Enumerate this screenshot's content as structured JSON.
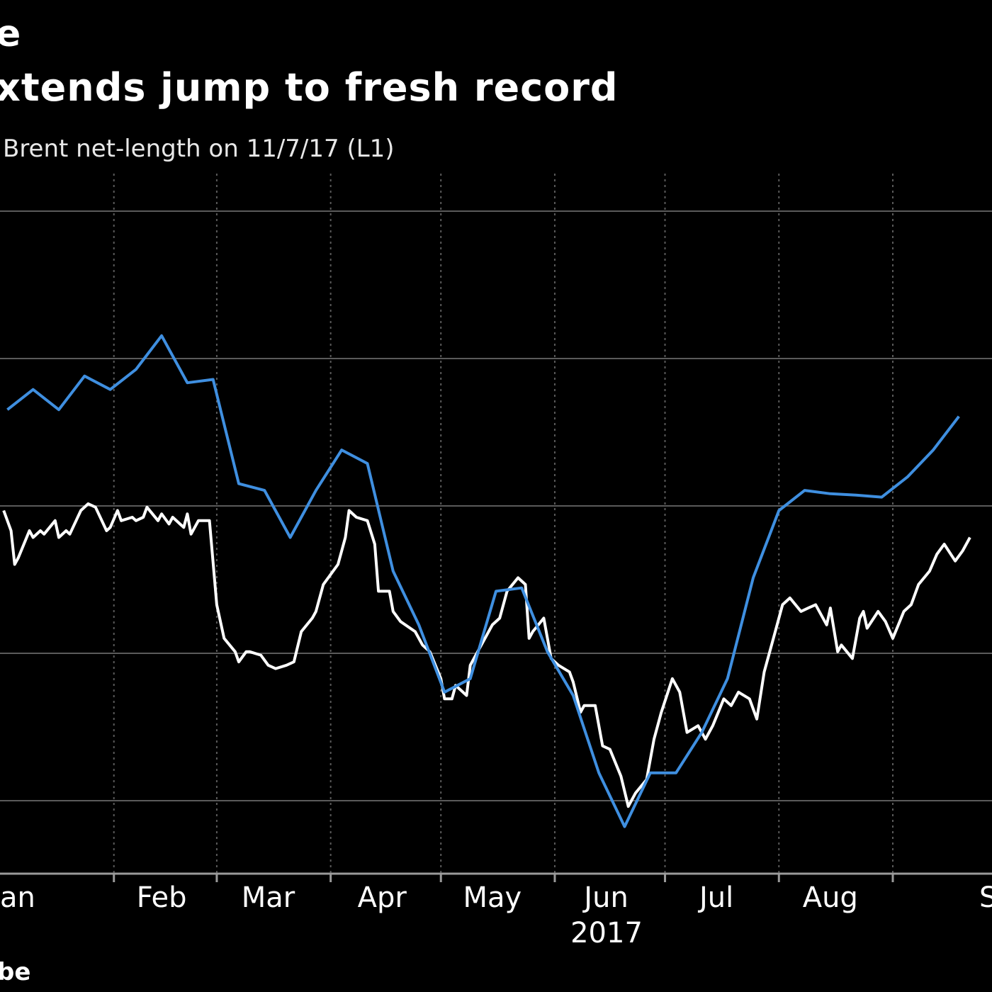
{
  "header": {
    "title_fragment": "e",
    "subtitle": "xtends jump to fresh record",
    "series_label": "Brent net-length on 11/7/17 (L1)"
  },
  "footer": {
    "source_fragment": "be"
  },
  "colors": {
    "background": "#000000",
    "brent_line": "#3f8fe0",
    "price_line": "#ffffff",
    "grid": "#5a5a5a"
  },
  "chart_data": {
    "type": "line",
    "title": "",
    "xlabel": "2017",
    "ylabel": "",
    "x_tick_labels": [
      {
        "label": "an",
        "date": "2017-01-15"
      },
      {
        "label": "Feb",
        "date": "2017-02-14"
      },
      {
        "label": "Mar",
        "date": "2017-03-15"
      },
      {
        "label": "Apr",
        "date": "2017-04-15"
      },
      {
        "label": "May",
        "date": "2017-05-15"
      },
      {
        "label": "Jun",
        "date": "2017-06-15"
      },
      {
        "label": "Jul",
        "date": "2017-07-15"
      },
      {
        "label": "Aug",
        "date": "2017-08-15"
      },
      {
        "label": "S",
        "date": "2017-09-15"
      }
    ],
    "year_label": "2017",
    "xlim": [
      "2017-01-01",
      "2017-09-28"
    ],
    "ylim": [
      0,
      100
    ],
    "grid": true,
    "series": [
      {
        "key": "brent",
        "name": "Brent net-length",
        "color": "#3f8fe0",
        "points": [
          [
            "2017-01-03",
            69
          ],
          [
            "2017-01-10",
            72
          ],
          [
            "2017-01-17",
            69
          ],
          [
            "2017-01-24",
            74
          ],
          [
            "2017-01-31",
            72
          ],
          [
            "2017-02-07",
            75
          ],
          [
            "2017-02-14",
            80
          ],
          [
            "2017-02-21",
            73
          ],
          [
            "2017-02-28",
            73.5
          ],
          [
            "2017-03-07",
            58
          ],
          [
            "2017-03-14",
            57
          ],
          [
            "2017-03-21",
            50
          ],
          [
            "2017-03-28",
            57
          ],
          [
            "2017-04-04",
            63
          ],
          [
            "2017-04-11",
            61
          ],
          [
            "2017-04-18",
            45
          ],
          [
            "2017-04-25",
            37
          ],
          [
            "2017-05-02",
            27
          ],
          [
            "2017-05-09",
            29
          ],
          [
            "2017-05-16",
            42
          ],
          [
            "2017-05-23",
            42.5
          ],
          [
            "2017-05-30",
            33
          ],
          [
            "2017-06-06",
            26.5
          ],
          [
            "2017-06-13",
            15
          ],
          [
            "2017-06-20",
            7
          ],
          [
            "2017-06-27",
            15
          ],
          [
            "2017-07-04",
            15
          ],
          [
            "2017-07-11",
            21
          ],
          [
            "2017-07-18",
            29
          ],
          [
            "2017-07-25",
            44
          ],
          [
            "2017-08-01",
            54
          ],
          [
            "2017-08-08",
            57
          ],
          [
            "2017-08-15",
            56.5
          ],
          [
            "2017-08-22",
            56.3
          ],
          [
            "2017-08-29",
            56
          ],
          [
            "2017-09-05",
            59
          ],
          [
            "2017-09-12",
            63
          ],
          [
            "2017-09-19",
            68
          ]
        ]
      },
      {
        "key": "price",
        "name": "",
        "color": "#ffffff",
        "points": [
          [
            "2017-01-02",
            54
          ],
          [
            "2017-01-04",
            51
          ],
          [
            "2017-01-05",
            46
          ],
          [
            "2017-01-06",
            47
          ],
          [
            "2017-01-09",
            51
          ],
          [
            "2017-01-10",
            50
          ],
          [
            "2017-01-12",
            51
          ],
          [
            "2017-01-13",
            50.5
          ],
          [
            "2017-01-16",
            52.5
          ],
          [
            "2017-01-17",
            50
          ],
          [
            "2017-01-19",
            51
          ],
          [
            "2017-01-20",
            50.5
          ],
          [
            "2017-01-23",
            54
          ],
          [
            "2017-01-25",
            55
          ],
          [
            "2017-01-27",
            54.5
          ],
          [
            "2017-01-30",
            51
          ],
          [
            "2017-01-31",
            51.5
          ],
          [
            "2017-02-02",
            54
          ],
          [
            "2017-02-03",
            52.5
          ],
          [
            "2017-02-06",
            53
          ],
          [
            "2017-02-07",
            52.5
          ],
          [
            "2017-02-09",
            53
          ],
          [
            "2017-02-10",
            54.5
          ],
          [
            "2017-02-13",
            52.5
          ],
          [
            "2017-02-14",
            53.5
          ],
          [
            "2017-02-16",
            52
          ],
          [
            "2017-02-17",
            53
          ],
          [
            "2017-02-20",
            51.5
          ],
          [
            "2017-02-21",
            53.5
          ],
          [
            "2017-02-22",
            50.5
          ],
          [
            "2017-02-24",
            52.5
          ],
          [
            "2017-02-27",
            52.5
          ],
          [
            "2017-03-01",
            40
          ],
          [
            "2017-03-03",
            35
          ],
          [
            "2017-03-06",
            33
          ],
          [
            "2017-03-07",
            31.5
          ],
          [
            "2017-03-09",
            33
          ],
          [
            "2017-03-10",
            33
          ],
          [
            "2017-03-13",
            32.5
          ],
          [
            "2017-03-15",
            31
          ],
          [
            "2017-03-17",
            30.5
          ],
          [
            "2017-03-20",
            31
          ],
          [
            "2017-03-22",
            31.5
          ],
          [
            "2017-03-24",
            36
          ],
          [
            "2017-03-27",
            38
          ],
          [
            "2017-03-28",
            39
          ],
          [
            "2017-03-30",
            43
          ],
          [
            "2017-04-03",
            46
          ],
          [
            "2017-04-05",
            50
          ],
          [
            "2017-04-06",
            54
          ],
          [
            "2017-04-08",
            53
          ],
          [
            "2017-04-11",
            52.5
          ],
          [
            "2017-04-13",
            49
          ],
          [
            "2017-04-14",
            42
          ],
          [
            "2017-04-17",
            42
          ],
          [
            "2017-04-18",
            39
          ],
          [
            "2017-04-20",
            37.5
          ],
          [
            "2017-04-24",
            36
          ],
          [
            "2017-04-26",
            34
          ],
          [
            "2017-04-28",
            33
          ],
          [
            "2017-05-01",
            29
          ],
          [
            "2017-05-02",
            26
          ],
          [
            "2017-05-04",
            26
          ],
          [
            "2017-05-05",
            28
          ],
          [
            "2017-05-08",
            26.5
          ],
          [
            "2017-05-09",
            31
          ],
          [
            "2017-05-11",
            33
          ],
          [
            "2017-05-12",
            34
          ],
          [
            "2017-05-15",
            37
          ],
          [
            "2017-05-17",
            38
          ],
          [
            "2017-05-19",
            42
          ],
          [
            "2017-05-22",
            44
          ],
          [
            "2017-05-24",
            43
          ],
          [
            "2017-05-25",
            35
          ],
          [
            "2017-05-26",
            36
          ],
          [
            "2017-05-29",
            38
          ],
          [
            "2017-05-31",
            32
          ],
          [
            "2017-06-02",
            31
          ],
          [
            "2017-06-05",
            30
          ],
          [
            "2017-06-06",
            28.5
          ],
          [
            "2017-06-08",
            24
          ],
          [
            "2017-06-09",
            25
          ],
          [
            "2017-06-12",
            25
          ],
          [
            "2017-06-14",
            19
          ],
          [
            "2017-06-16",
            18.5
          ],
          [
            "2017-06-19",
            14.5
          ],
          [
            "2017-06-21",
            10
          ],
          [
            "2017-06-23",
            12
          ],
          [
            "2017-06-26",
            14
          ],
          [
            "2017-06-28",
            20
          ],
          [
            "2017-06-30",
            24
          ],
          [
            "2017-07-03",
            29
          ],
          [
            "2017-07-05",
            27
          ],
          [
            "2017-07-07",
            21
          ],
          [
            "2017-07-10",
            22
          ],
          [
            "2017-07-12",
            20
          ],
          [
            "2017-07-14",
            22
          ],
          [
            "2017-07-17",
            26
          ],
          [
            "2017-07-19",
            25
          ],
          [
            "2017-07-21",
            27
          ],
          [
            "2017-07-24",
            26
          ],
          [
            "2017-07-26",
            23
          ],
          [
            "2017-07-28",
            30
          ],
          [
            "2017-07-31",
            36
          ],
          [
            "2017-08-02",
            40
          ],
          [
            "2017-08-04",
            41
          ],
          [
            "2017-08-07",
            39
          ],
          [
            "2017-08-09",
            39.5
          ],
          [
            "2017-08-11",
            40
          ],
          [
            "2017-08-14",
            37
          ],
          [
            "2017-08-15",
            39.5
          ],
          [
            "2017-08-17",
            33
          ],
          [
            "2017-08-18",
            34
          ],
          [
            "2017-08-21",
            32
          ],
          [
            "2017-08-23",
            38
          ],
          [
            "2017-08-24",
            39
          ],
          [
            "2017-08-25",
            36.5
          ],
          [
            "2017-08-28",
            39
          ],
          [
            "2017-08-30",
            37.5
          ],
          [
            "2017-09-01",
            35
          ],
          [
            "2017-09-04",
            39
          ],
          [
            "2017-09-06",
            40
          ],
          [
            "2017-09-08",
            43
          ],
          [
            "2017-09-11",
            45
          ],
          [
            "2017-09-13",
            47.5
          ],
          [
            "2017-09-15",
            49
          ],
          [
            "2017-09-18",
            46.5
          ],
          [
            "2017-09-20",
            48
          ],
          [
            "2017-09-22",
            50
          ]
        ]
      }
    ]
  }
}
